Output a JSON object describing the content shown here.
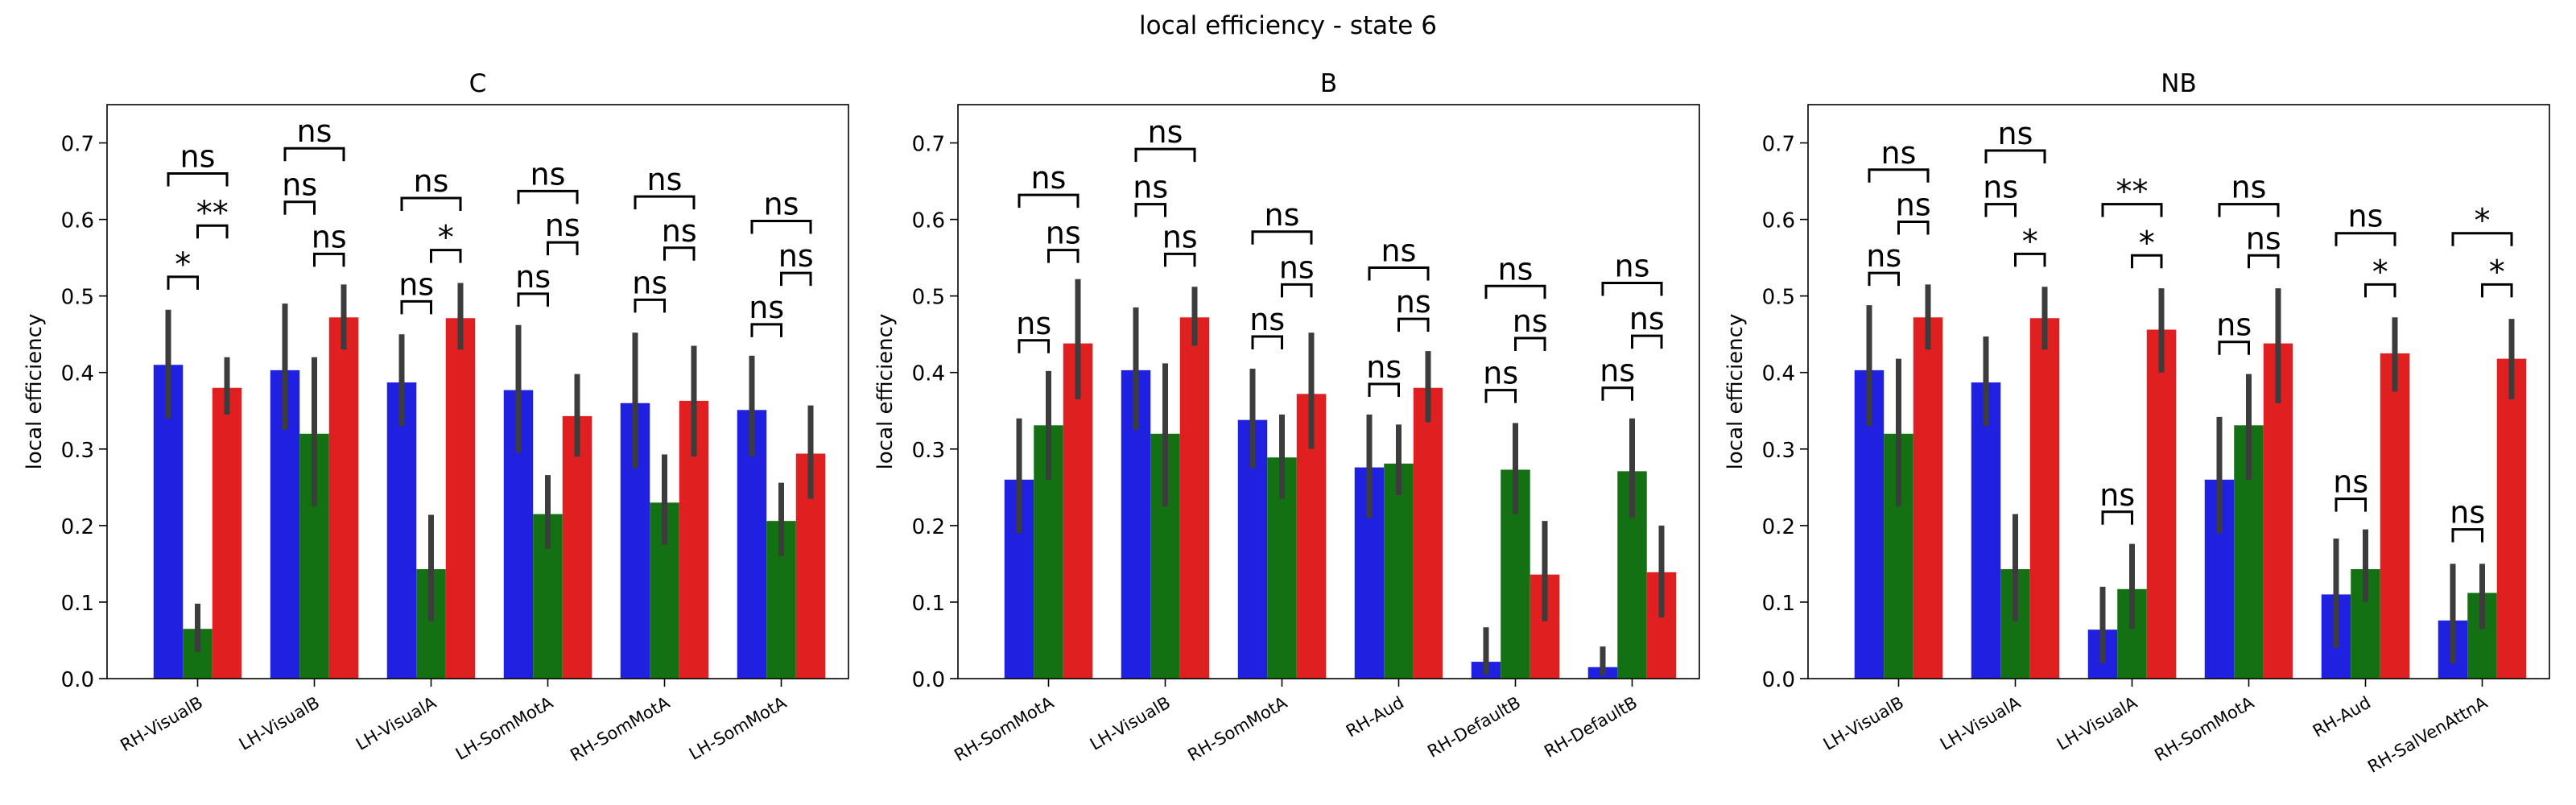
{
  "suptitle": "local efficiency - state 6",
  "ylabel": "local efficiency",
  "ylim": [
    0,
    0.75
  ],
  "yticks": [
    0.0,
    0.1,
    0.2,
    0.3,
    0.4,
    0.5,
    0.6,
    0.7
  ],
  "colors": [
    "#2020e0",
    "#137013",
    "#e02020"
  ],
  "chart_data": [
    {
      "type": "bar",
      "title": "C",
      "ylabel": "local efficiency",
      "ylim": [
        0,
        0.75
      ],
      "categories": [
        "RH-VisualB",
        "LH-VisualB",
        "LH-VisualA",
        "LH-SomMotA",
        "RH-SomMotA",
        "LH-SomMotA"
      ],
      "values": [
        [
          0.41,
          0.065,
          0.38
        ],
        [
          0.403,
          0.32,
          0.472
        ],
        [
          0.387,
          0.143,
          0.471
        ],
        [
          0.377,
          0.215,
          0.343
        ],
        [
          0.36,
          0.23,
          0.363
        ],
        [
          0.351,
          0.206,
          0.294
        ]
      ],
      "errors": [
        [
          [
            0.34,
            0.482
          ],
          [
            0.035,
            0.098
          ],
          [
            0.345,
            0.42
          ]
        ],
        [
          [
            0.325,
            0.49
          ],
          [
            0.225,
            0.42
          ],
          [
            0.43,
            0.515
          ]
        ],
        [
          [
            0.33,
            0.45
          ],
          [
            0.075,
            0.214
          ],
          [
            0.43,
            0.517
          ]
        ],
        [
          [
            0.295,
            0.462
          ],
          [
            0.17,
            0.266
          ],
          [
            0.29,
            0.398
          ]
        ],
        [
          [
            0.275,
            0.452
          ],
          [
            0.175,
            0.293
          ],
          [
            0.29,
            0.435
          ]
        ],
        [
          [
            0.29,
            0.422
          ],
          [
            0.16,
            0.256
          ],
          [
            0.235,
            0.357
          ]
        ]
      ],
      "annotations": [
        [
          {
            "text": "*",
            "level": 0.525
          },
          {
            "text": "**",
            "level": 0.592
          },
          {
            "text": "ns",
            "level": 0.66
          }
        ],
        [
          {
            "text": "ns",
            "level": 0.623
          },
          {
            "text": "ns",
            "level": 0.555
          },
          {
            "text": "ns",
            "level": 0.693
          }
        ],
        [
          {
            "text": "ns",
            "level": 0.493
          },
          {
            "text": "*",
            "level": 0.56
          },
          {
            "text": "ns",
            "level": 0.628
          }
        ],
        [
          {
            "text": "ns",
            "level": 0.503
          },
          {
            "text": "ns",
            "level": 0.57
          },
          {
            "text": "ns",
            "level": 0.637
          }
        ],
        [
          {
            "text": "ns",
            "level": 0.495
          },
          {
            "text": "ns",
            "level": 0.563
          },
          {
            "text": "ns",
            "level": 0.63
          }
        ],
        [
          {
            "text": "ns",
            "level": 0.463
          },
          {
            "text": "ns",
            "level": 0.53
          },
          {
            "text": "ns",
            "level": 0.598
          }
        ]
      ]
    },
    {
      "type": "bar",
      "title": "B",
      "ylabel": "local efficiency",
      "ylim": [
        0,
        0.75
      ],
      "categories": [
        "RH-SomMotA",
        "LH-VisualB",
        "RH-SomMotA",
        "RH-Aud",
        "RH-DefaultB",
        "RH-DefaultB"
      ],
      "values": [
        [
          0.26,
          0.331,
          0.438
        ],
        [
          0.403,
          0.32,
          0.472
        ],
        [
          0.338,
          0.289,
          0.372
        ],
        [
          0.276,
          0.281,
          0.38
        ],
        [
          0.022,
          0.273,
          0.136
        ],
        [
          0.015,
          0.271,
          0.139
        ]
      ],
      "errors": [
        [
          [
            0.19,
            0.34
          ],
          [
            0.26,
            0.402
          ],
          [
            0.365,
            0.522
          ]
        ],
        [
          [
            0.325,
            0.485
          ],
          [
            0.225,
            0.412
          ],
          [
            0.435,
            0.512
          ]
        ],
        [
          [
            0.275,
            0.405
          ],
          [
            0.235,
            0.345
          ],
          [
            0.3,
            0.452
          ]
        ],
        [
          [
            0.21,
            0.345
          ],
          [
            0.24,
            0.332
          ],
          [
            0.335,
            0.428
          ]
        ],
        [
          [
            0.005,
            0.067
          ],
          [
            0.215,
            0.334
          ],
          [
            0.075,
            0.206
          ]
        ],
        [
          [
            0.004,
            0.042
          ],
          [
            0.21,
            0.34
          ],
          [
            0.08,
            0.2
          ]
        ]
      ],
      "annotations": [
        [
          {
            "text": "ns",
            "level": 0.442
          },
          {
            "text": "ns",
            "level": 0.56
          },
          {
            "text": "ns",
            "level": 0.632
          }
        ],
        [
          {
            "text": "ns",
            "level": 0.62
          },
          {
            "text": "ns",
            "level": 0.555
          },
          {
            "text": "ns",
            "level": 0.692
          }
        ],
        [
          {
            "text": "ns",
            "level": 0.447
          },
          {
            "text": "ns",
            "level": 0.515
          },
          {
            "text": "ns",
            "level": 0.584
          }
        ],
        [
          {
            "text": "ns",
            "level": 0.385
          },
          {
            "text": "ns",
            "level": 0.47
          },
          {
            "text": "ns",
            "level": 0.537
          }
        ],
        [
          {
            "text": "ns",
            "level": 0.377
          },
          {
            "text": "ns",
            "level": 0.445
          },
          {
            "text": "ns",
            "level": 0.513
          }
        ],
        [
          {
            "text": "ns",
            "level": 0.38
          },
          {
            "text": "ns",
            "level": 0.448
          },
          {
            "text": "ns",
            "level": 0.517
          }
        ]
      ]
    },
    {
      "type": "bar",
      "title": "NB",
      "ylabel": "local efficiency",
      "ylim": [
        0,
        0.75
      ],
      "categories": [
        "LH-VisualB",
        "LH-VisualA",
        "LH-VisualA",
        "RH-SomMotA",
        "RH-Aud",
        "RH-SalVenAttnA"
      ],
      "values": [
        [
          0.403,
          0.32,
          0.472
        ],
        [
          0.387,
          0.143,
          0.471
        ],
        [
          0.064,
          0.117,
          0.456
        ],
        [
          0.26,
          0.331,
          0.438
        ],
        [
          0.11,
          0.143,
          0.425
        ],
        [
          0.076,
          0.112,
          0.418
        ]
      ],
      "errors": [
        [
          [
            0.33,
            0.488
          ],
          [
            0.225,
            0.418
          ],
          [
            0.43,
            0.515
          ]
        ],
        [
          [
            0.33,
            0.447
          ],
          [
            0.075,
            0.215
          ],
          [
            0.43,
            0.512
          ]
        ],
        [
          [
            0.02,
            0.12
          ],
          [
            0.065,
            0.176
          ],
          [
            0.4,
            0.51
          ]
        ],
        [
          [
            0.19,
            0.342
          ],
          [
            0.26,
            0.398
          ],
          [
            0.36,
            0.51
          ]
        ],
        [
          [
            0.04,
            0.183
          ],
          [
            0.1,
            0.195
          ],
          [
            0.375,
            0.472
          ]
        ],
        [
          [
            0.02,
            0.15
          ],
          [
            0.065,
            0.15
          ],
          [
            0.365,
            0.47
          ]
        ]
      ],
      "annotations": [
        [
          {
            "text": "ns",
            "level": 0.53
          },
          {
            "text": "ns",
            "level": 0.597
          },
          {
            "text": "ns",
            "level": 0.665
          }
        ],
        [
          {
            "text": "ns",
            "level": 0.62
          },
          {
            "text": "*",
            "level": 0.555
          },
          {
            "text": "ns",
            "level": 0.69
          }
        ],
        [
          {
            "text": "ns",
            "level": 0.218
          },
          {
            "text": "*",
            "level": 0.553
          },
          {
            "text": "**",
            "level": 0.62
          }
        ],
        [
          {
            "text": "ns",
            "level": 0.44
          },
          {
            "text": "ns",
            "level": 0.553
          },
          {
            "text": "ns",
            "level": 0.62
          }
        ],
        [
          {
            "text": "ns",
            "level": 0.235
          },
          {
            "text": "*",
            "level": 0.515
          },
          {
            "text": "ns",
            "level": 0.582
          }
        ],
        [
          {
            "text": "ns",
            "level": 0.195
          },
          {
            "text": "*",
            "level": 0.515
          },
          {
            "text": "*",
            "level": 0.582
          }
        ]
      ]
    }
  ]
}
